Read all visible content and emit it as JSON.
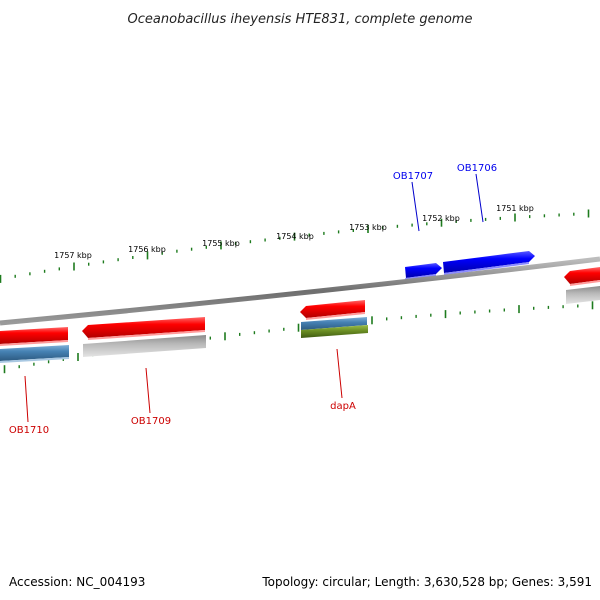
{
  "title": "Oceanobacillus iheyensis HTE831, complete genome",
  "footer": {
    "accession": "Accession: NC_004193",
    "summary": "Topology: circular; Length: 3,630,528 bp; Genes: 3,591"
  },
  "ruler": {
    "tick_labels": [
      "1757 kbp",
      "1756 kbp",
      "1755 kbp",
      "1754 kbp",
      "1753 kbp",
      "1752 kbp",
      "1751 kbp"
    ]
  },
  "genes": {
    "forward": [
      {
        "label": "OB1707",
        "color": "#0000ee"
      },
      {
        "label": "OB1706",
        "color": "#0000ee"
      }
    ],
    "reverse": [
      {
        "label": "OB1710",
        "color": "#cc0000"
      },
      {
        "label": "OB1709",
        "color": "#cc0000"
      },
      {
        "label": "dapA",
        "color": "#cc0000"
      }
    ]
  },
  "colors": {
    "backbone": "#808080",
    "tick_mark": "#1e7b1e",
    "cds_red": "#ff0000",
    "cds_blue": "#0000ff",
    "feature_steelblue": "#4682b4",
    "feature_gray": "#a9a9a9",
    "feature_olive": "#6b8e23"
  }
}
